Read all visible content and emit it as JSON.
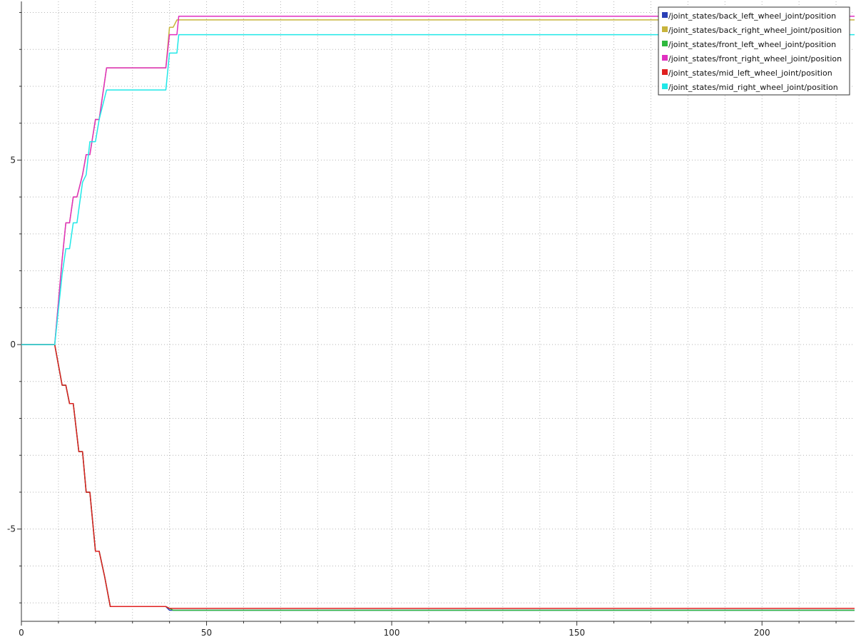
{
  "chart_data": {
    "type": "line",
    "title": "",
    "xlabel": "",
    "ylabel": "",
    "xlim": [
      0,
      225
    ],
    "ylim": [
      -7.5,
      9.3
    ],
    "x_major_ticks": [
      0,
      50,
      100,
      150,
      200
    ],
    "y_major_ticks": [
      -5,
      0,
      5
    ],
    "grid": true,
    "legend_position": "top-right",
    "series": [
      {
        "name": "/joint_states/back_left_wheel_joint/position",
        "color": "#2a3fb5",
        "points": [
          [
            0,
            0
          ],
          [
            9,
            0
          ],
          [
            11,
            -1.1
          ],
          [
            12,
            -1.1
          ],
          [
            13,
            -1.6
          ],
          [
            14,
            -1.6
          ],
          [
            15.5,
            -2.9
          ],
          [
            16.5,
            -2.9
          ],
          [
            17.5,
            -4.0
          ],
          [
            18.5,
            -4.0
          ],
          [
            20,
            -5.6
          ],
          [
            21,
            -5.6
          ],
          [
            22.5,
            -6.3
          ],
          [
            24,
            -7.1
          ],
          [
            39,
            -7.1
          ],
          [
            40,
            -7.2
          ],
          [
            225,
            -7.2
          ]
        ]
      },
      {
        "name": "/joint_states/back_right_wheel_joint/position",
        "color": "#c8b43c",
        "points": [
          [
            0,
            0
          ],
          [
            9,
            0
          ],
          [
            11,
            2.3
          ],
          [
            12,
            3.3
          ],
          [
            13,
            3.3
          ],
          [
            14,
            4.0
          ],
          [
            15,
            4.0
          ],
          [
            16.5,
            4.6
          ],
          [
            17.5,
            5.15
          ],
          [
            18.5,
            5.15
          ],
          [
            20,
            6.1
          ],
          [
            21,
            6.1
          ],
          [
            23,
            7.5
          ],
          [
            39,
            7.5
          ],
          [
            40,
            8.6
          ],
          [
            41,
            8.6
          ],
          [
            42,
            8.8
          ],
          [
            225,
            8.8
          ]
        ]
      },
      {
        "name": "/joint_states/front_left_wheel_joint/position",
        "color": "#2db83d",
        "points": [
          [
            0,
            0
          ],
          [
            9,
            0
          ],
          [
            11,
            -1.1
          ],
          [
            12,
            -1.1
          ],
          [
            13,
            -1.6
          ],
          [
            14,
            -1.6
          ],
          [
            15.5,
            -2.9
          ],
          [
            16.5,
            -2.9
          ],
          [
            17.5,
            -4.0
          ],
          [
            18.5,
            -4.0
          ],
          [
            20,
            -5.6
          ],
          [
            21,
            -5.6
          ],
          [
            22.5,
            -6.3
          ],
          [
            24,
            -7.1
          ],
          [
            39,
            -7.1
          ],
          [
            41,
            -7.2
          ],
          [
            225,
            -7.2
          ]
        ]
      },
      {
        "name": "/joint_states/front_right_wheel_joint/position",
        "color": "#e030c0",
        "points": [
          [
            0,
            0
          ],
          [
            9,
            0
          ],
          [
            11,
            2.3
          ],
          [
            12,
            3.3
          ],
          [
            13,
            3.3
          ],
          [
            14,
            4.0
          ],
          [
            15,
            4.0
          ],
          [
            16.5,
            4.6
          ],
          [
            17.5,
            5.15
          ],
          [
            18.5,
            5.15
          ],
          [
            20,
            6.1
          ],
          [
            21,
            6.1
          ],
          [
            23,
            7.5
          ],
          [
            39,
            7.5
          ],
          [
            40,
            8.4
          ],
          [
            42,
            8.4
          ],
          [
            42.5,
            8.9
          ],
          [
            225,
            8.9
          ]
        ]
      },
      {
        "name": "/joint_states/mid_left_wheel_joint/position",
        "color": "#e02020",
        "points": [
          [
            0,
            0
          ],
          [
            9,
            0
          ],
          [
            11,
            -1.1
          ],
          [
            12,
            -1.1
          ],
          [
            13,
            -1.6
          ],
          [
            14,
            -1.6
          ],
          [
            15.5,
            -2.9
          ],
          [
            16.5,
            -2.9
          ],
          [
            17.5,
            -4.0
          ],
          [
            18.5,
            -4.0
          ],
          [
            20,
            -5.6
          ],
          [
            21,
            -5.6
          ],
          [
            22.5,
            -6.3
          ],
          [
            24,
            -7.1
          ],
          [
            39,
            -7.1
          ],
          [
            40,
            -7.15
          ],
          [
            225,
            -7.15
          ]
        ]
      },
      {
        "name": "/joint_states/mid_right_wheel_joint/position",
        "color": "#20e8e8",
        "points": [
          [
            0,
            0
          ],
          [
            9,
            0
          ],
          [
            11,
            1.9
          ],
          [
            12,
            2.6
          ],
          [
            13,
            2.6
          ],
          [
            14,
            3.3
          ],
          [
            15,
            3.3
          ],
          [
            16.5,
            4.4
          ],
          [
            17.5,
            4.6
          ],
          [
            18.5,
            5.5
          ],
          [
            20,
            5.5
          ],
          [
            21,
            6.1
          ],
          [
            23,
            6.9
          ],
          [
            39,
            6.9
          ],
          [
            40,
            7.9
          ],
          [
            42,
            7.9
          ],
          [
            42.5,
            8.4
          ],
          [
            225,
            8.4
          ]
        ]
      }
    ],
    "x_tick_labels": [
      "0",
      "50",
      "100",
      "150",
      "200"
    ],
    "y_tick_labels": [
      "-5",
      "0",
      "5"
    ]
  }
}
